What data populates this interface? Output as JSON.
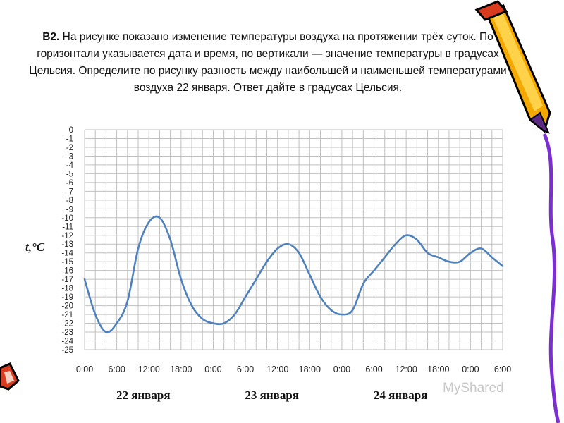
{
  "task": {
    "number": "B2.",
    "text": "На рисунке показано изменение температуры воздуха на протяжении трёх суток. По горизонтали указывается дата и время, по вертикали — значение температуры в градусах Цельсия. Определите по рисунку разность между наибольшей и наименьшей температурами воздуха 22 января. Ответ дайте в градусах Цельсия."
  },
  "watermark": "MyShared",
  "colors": {
    "line": "#4f81bd",
    "grid": "#c0c0c0",
    "pencil_body": "#f5a800",
    "pencil_tip": "#5a2a83",
    "stripe": "#7b2fd0"
  },
  "chart_data": {
    "type": "line",
    "ylabel": "t,°C",
    "ylim": [
      -25,
      0
    ],
    "yticks": [
      "0",
      "-1",
      "-2",
      "-3",
      "-4",
      "-5",
      "-6",
      "-7",
      "-8",
      "-9",
      "-10",
      "-11",
      "-12",
      "-13",
      "-14",
      "-15",
      "-16",
      "-17",
      "-18",
      "-19",
      "-20",
      "-21",
      "-22",
      "-23",
      "-24",
      "-25"
    ],
    "xticks": [
      "0:00",
      "6:00",
      "12:00",
      "18:00",
      "0:00",
      "6:00",
      "12:00",
      "18:00",
      "0:00",
      "6:00",
      "12:00",
      "18:00",
      "0:00",
      "6:00"
    ],
    "xlim_hours": [
      0,
      78
    ],
    "grid": true,
    "day_labels": [
      "22 января",
      "23 января",
      "24 января"
    ],
    "series": [
      {
        "x": [
          0,
          2,
          4,
          6,
          8,
          10,
          12,
          14,
          16,
          18,
          20,
          22,
          24,
          26,
          28,
          30,
          32,
          34,
          36,
          38,
          40,
          42,
          44,
          46,
          48,
          50,
          52,
          54,
          56,
          58,
          60,
          62,
          64,
          66,
          68,
          70,
          72,
          74,
          76,
          78
        ],
        "y": [
          -17,
          -21,
          -23,
          -22,
          -19.5,
          -13.5,
          -10.5,
          -10,
          -12.5,
          -17,
          -20,
          -21.5,
          -22,
          -22,
          -21,
          -19,
          -17,
          -15,
          -13.5,
          -13,
          -14,
          -16.5,
          -19,
          -20.5,
          -21,
          -20.5,
          -17.5,
          -16,
          -14.5,
          -13,
          -12,
          -12.5,
          -14,
          -14.5,
          -15,
          -15,
          -14,
          -13.5,
          -14.5,
          -15.5
        ]
      }
    ]
  }
}
